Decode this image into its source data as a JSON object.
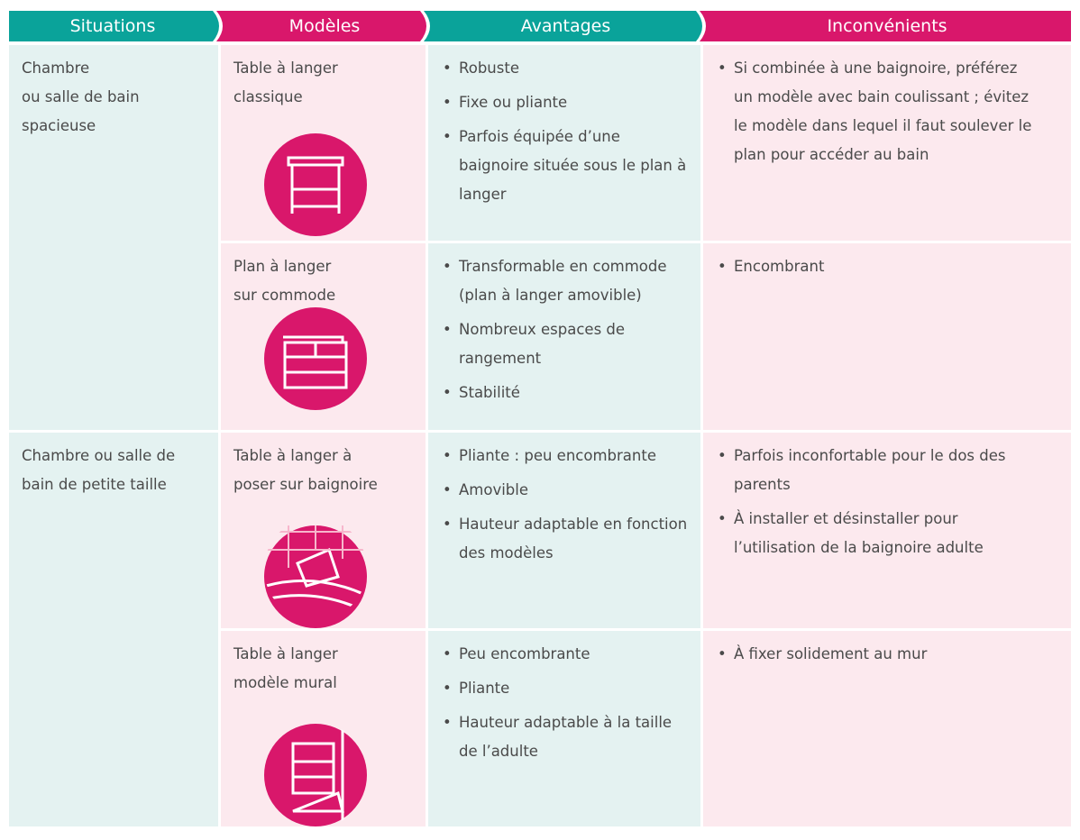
{
  "header": {
    "columns": [
      "Situations",
      "Modèles",
      "Avantages",
      "Inconvénients"
    ]
  },
  "groups": [
    {
      "situation": [
        "Chambre",
        "ou salle de bain",
        "spacieuse"
      ],
      "rows": [
        {
          "model": [
            "Table à langer",
            "classique"
          ],
          "advantages": [
            "Robuste",
            "Fixe ou pliante",
            "Parfois équipée d’une baignoire située sous le plan à langer"
          ],
          "drawbacks": [
            "Si combinée à une baignoire, préférez un modèle avec bain coulissant ; évitez le modèle dans lequel il faut soulever le plan pour accéder au bain"
          ]
        },
        {
          "model": [
            "Plan à langer",
            "sur commode"
          ],
          "advantages": [
            "Transformable en commode (plan à langer amovible)",
            "Nombreux espaces de rangement",
            "Stabilité"
          ],
          "drawbacks": [
            "Encombrant"
          ]
        }
      ]
    },
    {
      "situation": [
        "Chambre ou salle de",
        "bain de petite taille"
      ],
      "rows": [
        {
          "model": [
            "Table à langer à",
            "poser sur baignoire"
          ],
          "advantages": [
            "Pliante : peu encombrante",
            "Amovible",
            "Hauteur adaptable en fonction des modèles"
          ],
          "drawbacks": [
            "Parfois inconfortable pour le dos des parents",
            "À installer et désinstaller pour l’utilisation de la baignoire adulte"
          ]
        },
        {
          "model": [
            "Table à langer",
            "modèle mural"
          ],
          "advantages": [
            "Peu encombrante",
            "Pliante",
            "Hauteur adaptable à la taille de l’adulte"
          ],
          "drawbacks": [
            "À fixer solidement au mur"
          ]
        }
      ]
    }
  ]
}
